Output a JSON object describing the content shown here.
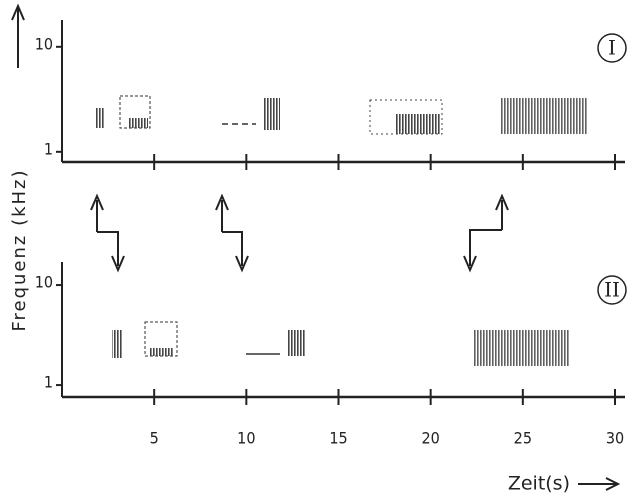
{
  "chart_data": [
    {
      "type": "sonogram",
      "panel_label": "I",
      "ylabel": "Frequenz (kHz)",
      "xlim": [
        0,
        30
      ],
      "ylim": [
        0.8,
        18
      ],
      "log_y": true,
      "yticks": [
        1,
        10
      ]
    },
    {
      "type": "sonogram",
      "panel_label": "II",
      "xlabel": "Zeit(s)",
      "xlim": [
        0,
        30
      ],
      "ylim": [
        0.76,
        17
      ],
      "log_y": true,
      "yticks": [
        1,
        10
      ],
      "xticks": [
        5,
        10,
        15,
        20,
        25,
        30
      ]
    }
  ]
}
